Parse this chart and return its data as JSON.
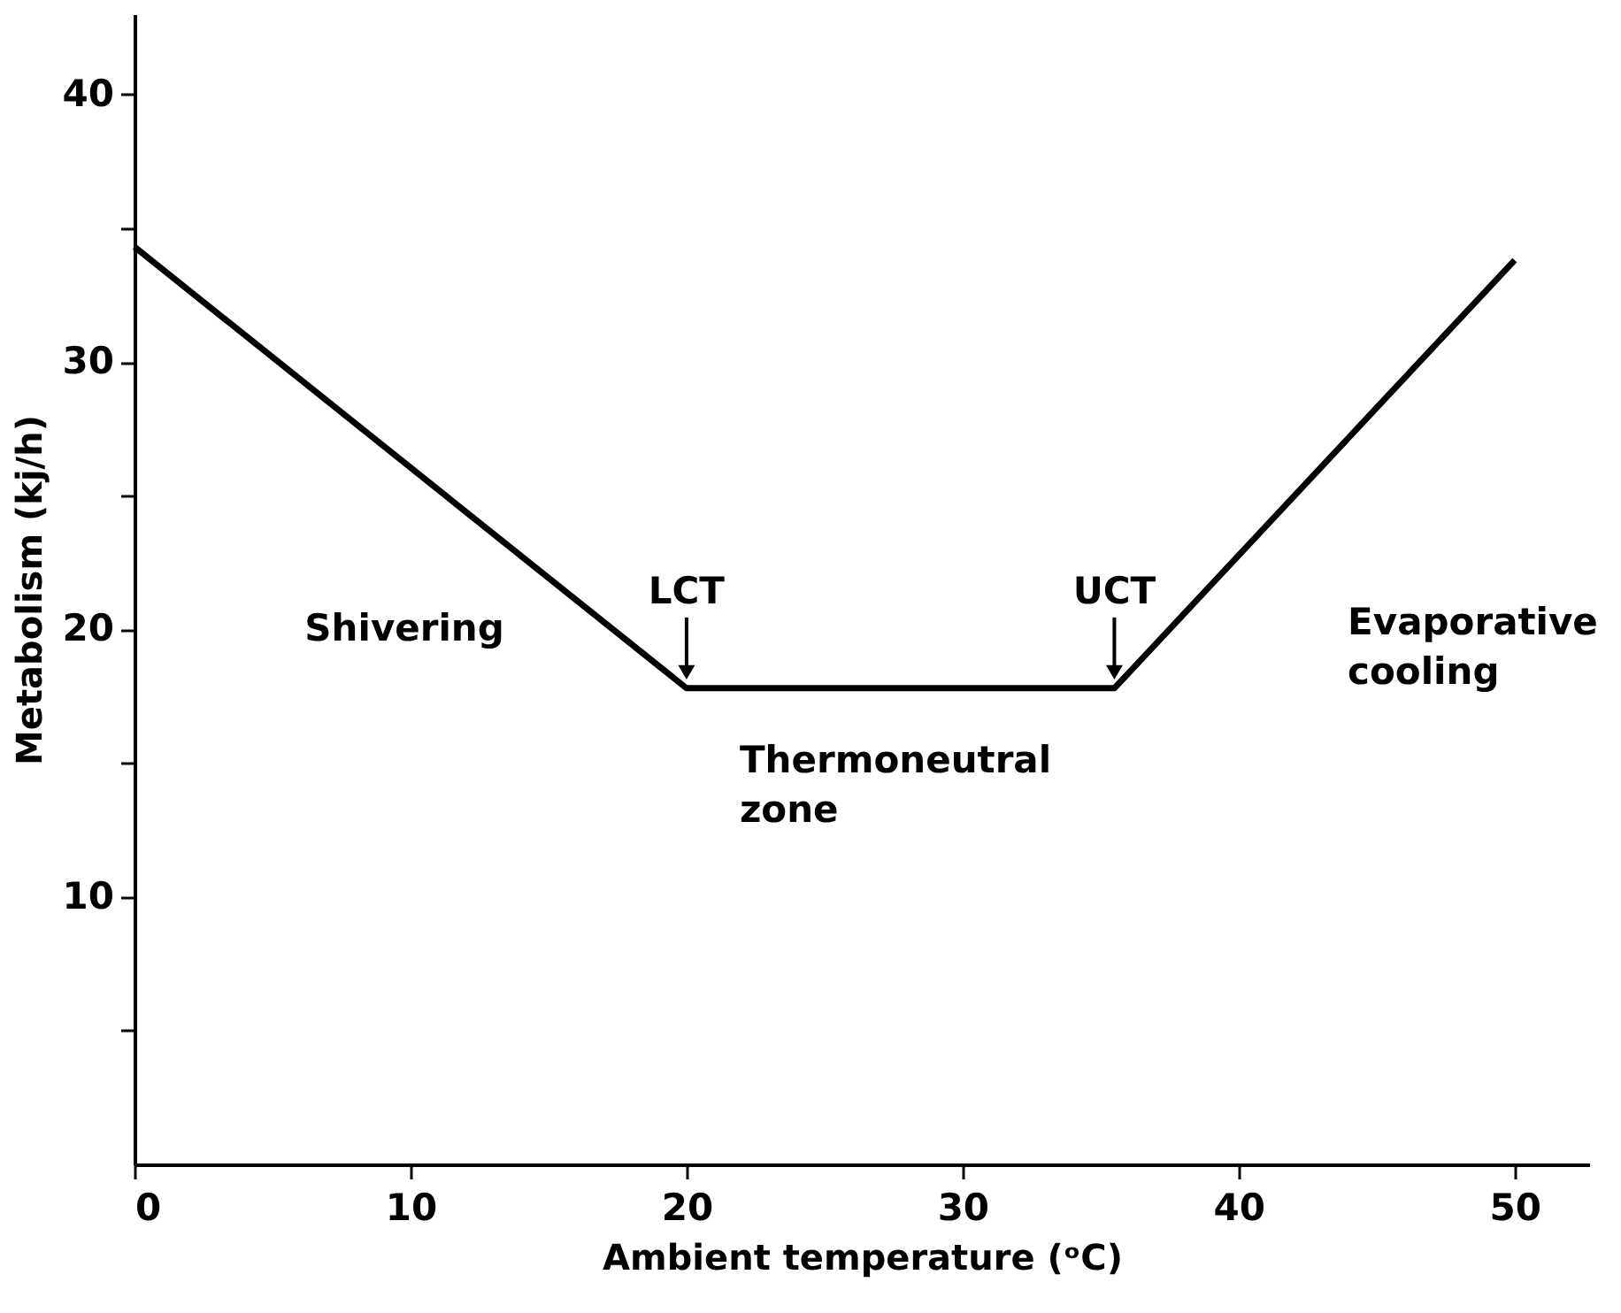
{
  "chart_data": {
    "type": "line",
    "x": [
      0,
      20,
      35.5,
      50
    ],
    "series": [
      {
        "color": "#000000",
        "values": [
          34.3,
          17.8,
          17.8,
          33.8
        ]
      }
    ],
    "xlabel": "Ambient temperature (ᵒC)",
    "ylabel": "Metabolism (kj/h)",
    "xlim": [
      0,
      52.7
    ],
    "ylim": [
      0,
      43
    ],
    "xticks": [
      0,
      10,
      20,
      30,
      40,
      50
    ],
    "yticks": [
      {
        "value": 5,
        "label": null
      },
      10,
      {
        "value": 15,
        "label": null
      },
      20,
      {
        "value": 25,
        "label": null
      },
      30,
      {
        "value": 35,
        "label": null
      },
      40
    ],
    "grid": false,
    "marker": "none",
    "line_style": "solid",
    "annotations": [
      "Shivering",
      {
        "text": "LCT",
        "x": 20,
        "y": 17.8
      },
      {
        "text": "UCT",
        "x": 35.5,
        "y": 17.8
      },
      "Thermoneutral zone",
      "Evaporative cooling"
    ]
  }
}
